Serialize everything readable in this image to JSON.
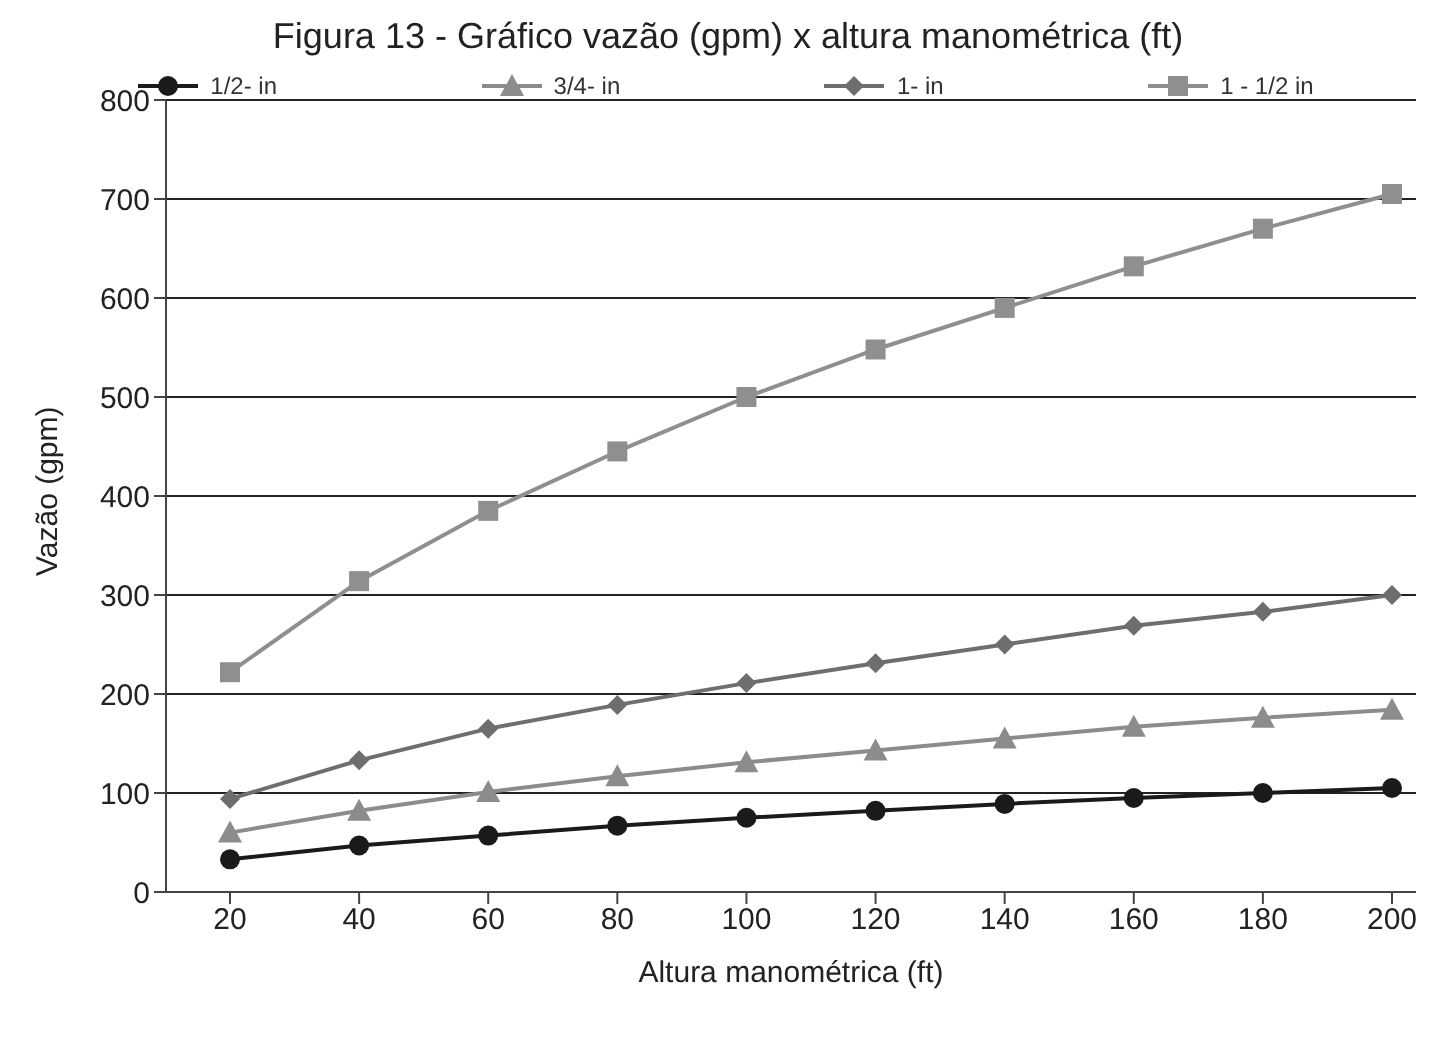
{
  "chart_data": {
    "type": "line",
    "title": "Figura 13 - Gráfico vazão (gpm) x altura manométrica (ft)",
    "xlabel": "Altura manométrica (ft)",
    "ylabel": "Vazão (gpm)",
    "categories": [
      "20",
      "40",
      "60",
      "80",
      "100",
      "120",
      "140",
      "160",
      "180",
      "200"
    ],
    "series": [
      {
        "name": "1/2- in",
        "color": "#1a1a1a",
        "marker": "circle",
        "values": [
          33,
          47,
          57,
          67,
          75,
          82,
          89,
          95,
          100,
          105
        ]
      },
      {
        "name": "3/4- in",
        "color": "#8c8c8c",
        "marker": "triangle",
        "values": [
          60,
          82,
          101,
          117,
          131,
          143,
          155,
          167,
          176,
          184
        ]
      },
      {
        "name": "1- in",
        "color": "#6e6e6e",
        "marker": "diamond",
        "values": [
          94,
          133,
          165,
          189,
          211,
          231,
          250,
          269,
          283,
          300
        ]
      },
      {
        "name": "1 - 1/2 in",
        "color": "#8f8f8f",
        "marker": "square",
        "values": [
          222,
          314,
          385,
          445,
          500,
          548,
          590,
          632,
          670,
          705
        ]
      }
    ],
    "ylim": [
      0,
      800
    ],
    "yticks": [
      0,
      100,
      200,
      300,
      400,
      500,
      600,
      700,
      800
    ],
    "grid": "y",
    "legend": "top",
    "line_style": "solid"
  }
}
